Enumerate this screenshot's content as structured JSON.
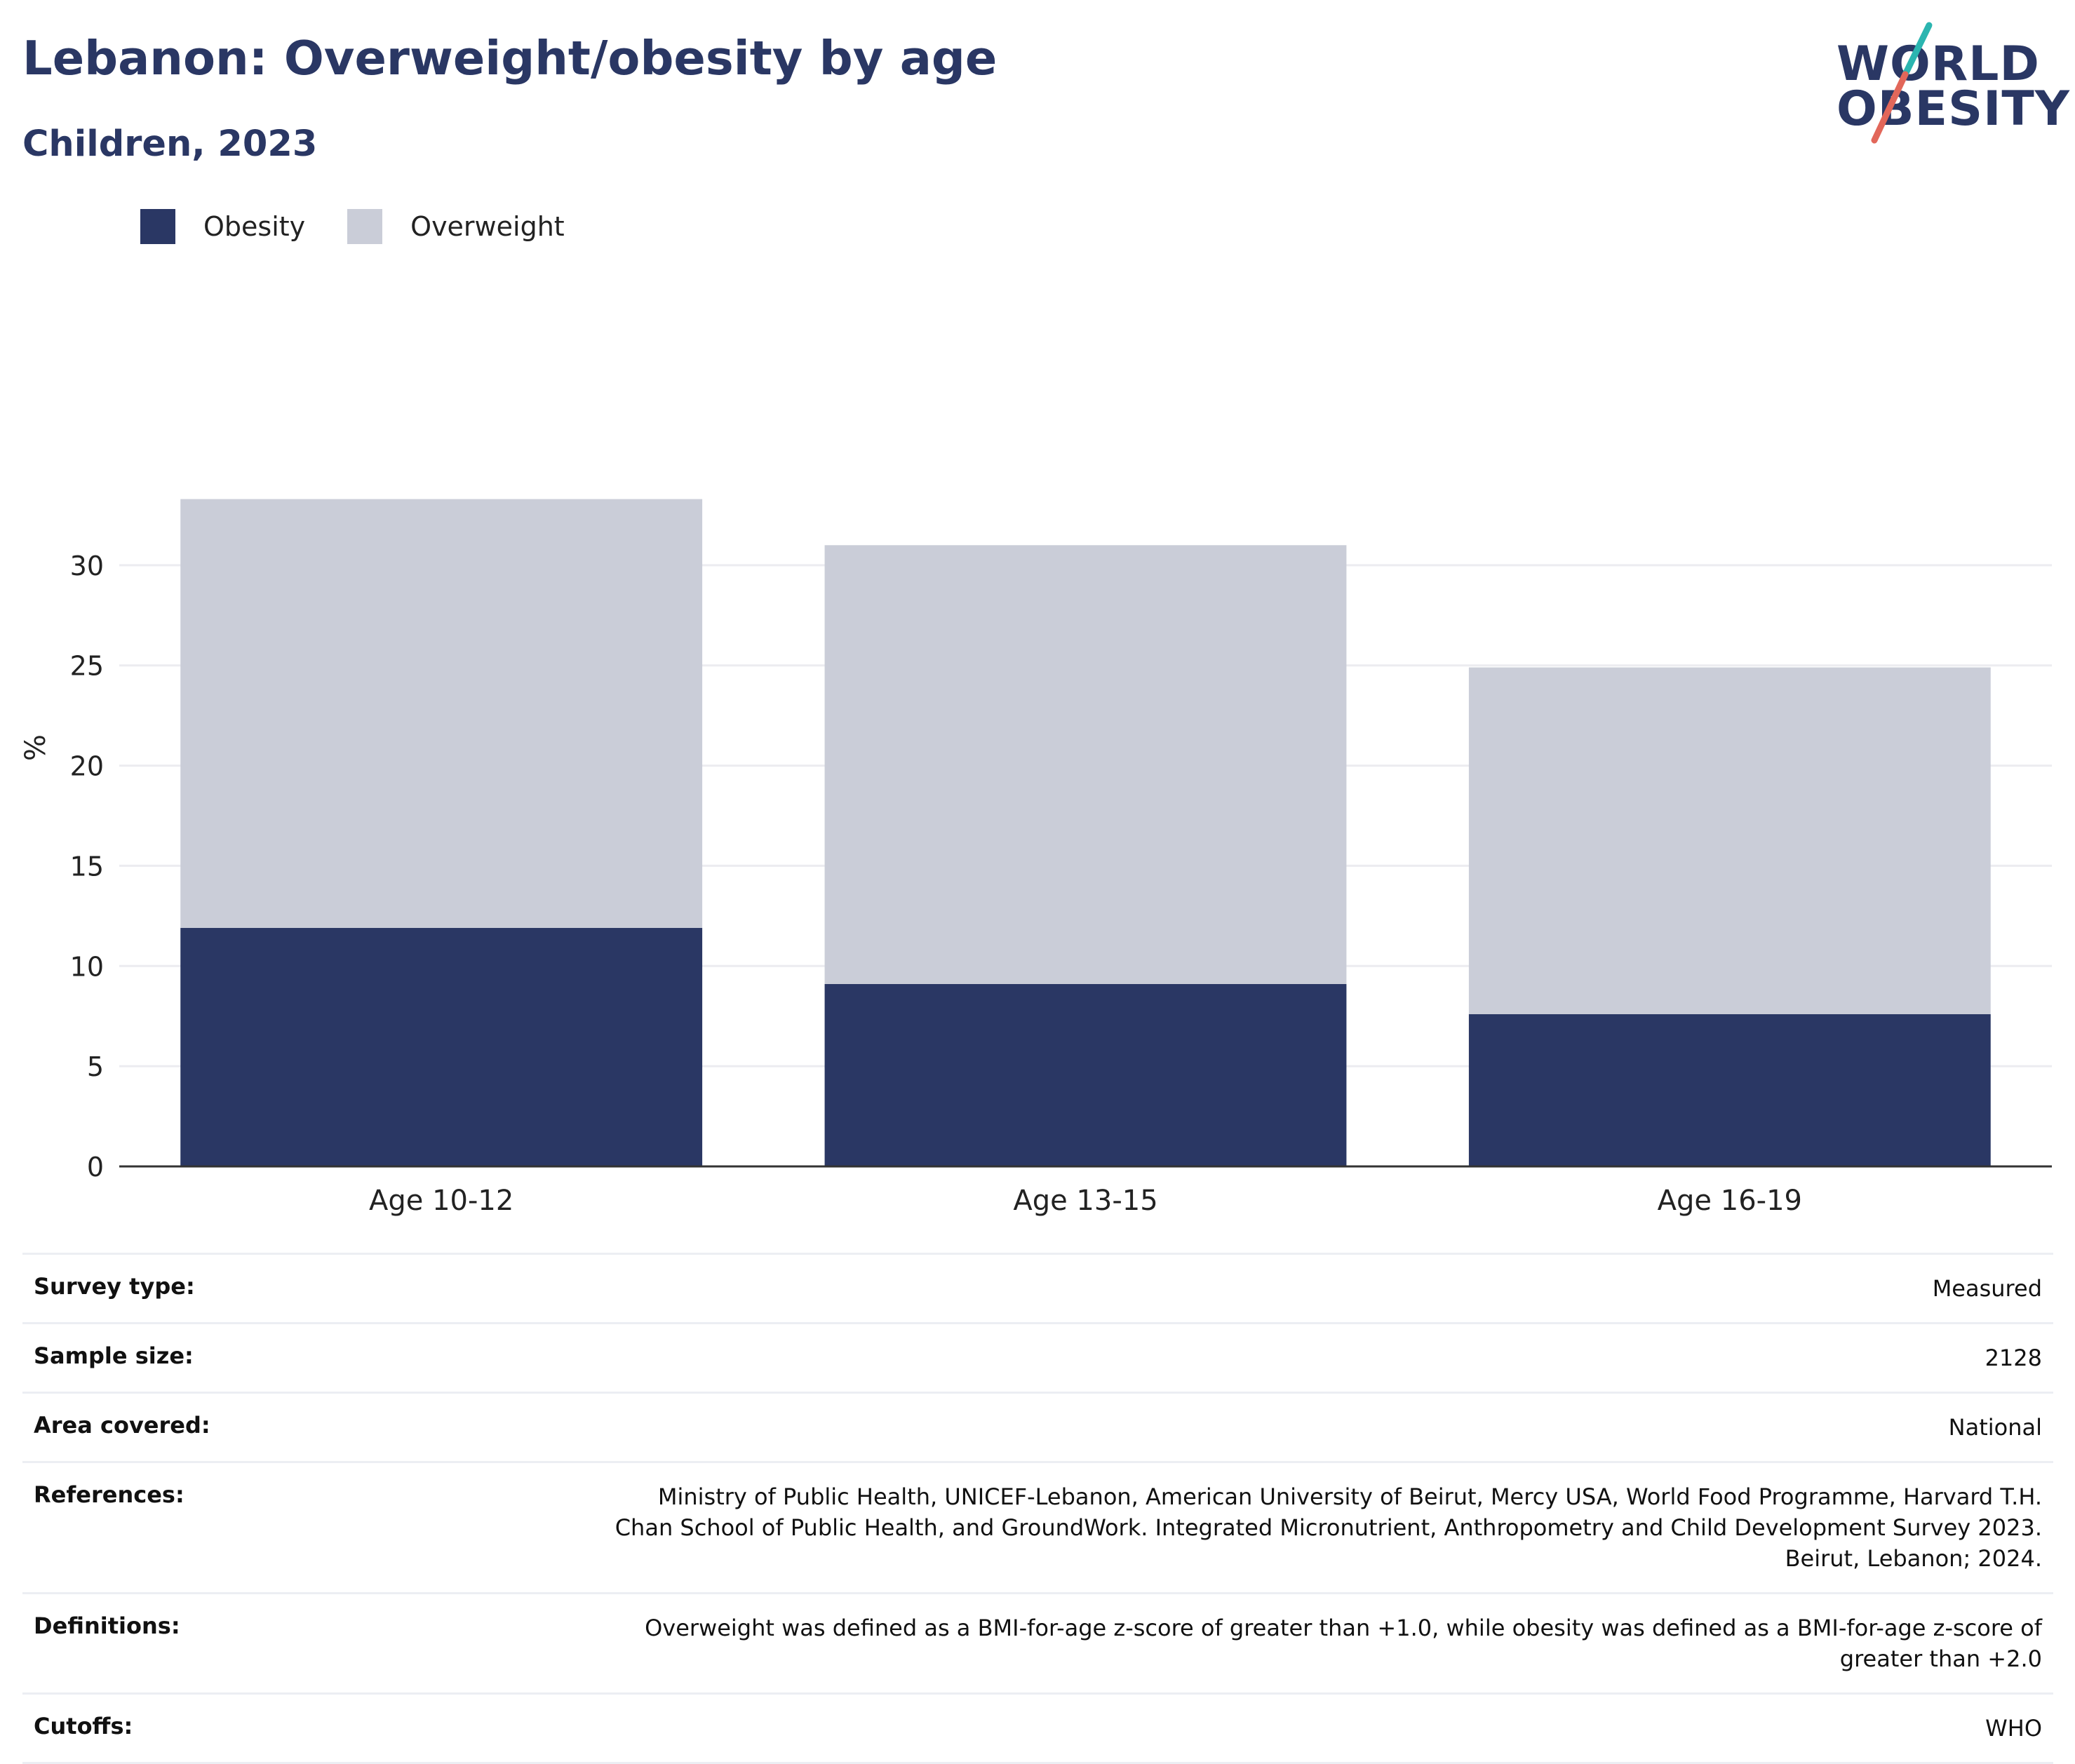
{
  "header": {
    "title": "Lebanon: Overweight/obesity by age",
    "subtitle": "Children, 2023"
  },
  "logo": {
    "line1": "WORLD",
    "line2": "OBESITY",
    "accent_teal": "#2bb5b0",
    "accent_coral": "#e2675a"
  },
  "legend": [
    {
      "label": "Obesity",
      "color": "#2a3764"
    },
    {
      "label": "Overweight",
      "color": "#cacdd8"
    }
  ],
  "chart_data": {
    "type": "bar",
    "stacked": true,
    "categories": [
      "Age 10-12",
      "Age 13-15",
      "Age 16-19"
    ],
    "series": [
      {
        "name": "Obesity",
        "color": "#2a3764",
        "values": [
          11.9,
          9.1,
          7.6
        ]
      },
      {
        "name": "Overweight",
        "color": "#cacdd8",
        "values": [
          21.4,
          21.9,
          17.3
        ]
      }
    ],
    "ylabel": "%",
    "xlabel": "",
    "yticks": [
      0,
      5,
      10,
      15,
      20,
      25,
      30
    ],
    "ylim": [
      0,
      35
    ],
    "grid": true,
    "legend_position": "top-left"
  },
  "meta": [
    {
      "key": "Survey type:",
      "value": "Measured"
    },
    {
      "key": "Sample size:",
      "value": "2128"
    },
    {
      "key": "Area covered:",
      "value": "National"
    },
    {
      "key": "References:",
      "value": "Ministry of Public Health, UNICEF-Lebanon, American University of Beirut, Mercy USA, World Food Programme, Harvard T.H. Chan School of Public Health, and GroundWork. Integrated Micronutrient, Anthropometry and Child Development Survey 2023. Beirut, Lebanon; 2024."
    },
    {
      "key": "Definitions:",
      "value": "Overweight was defined as a BMI-for-age z-score of greater than +1.0, while obesity was defined as a BMI-for-age z-score of greater than +2.0"
    },
    {
      "key": "Cutoffs:",
      "value": "WHO"
    }
  ]
}
